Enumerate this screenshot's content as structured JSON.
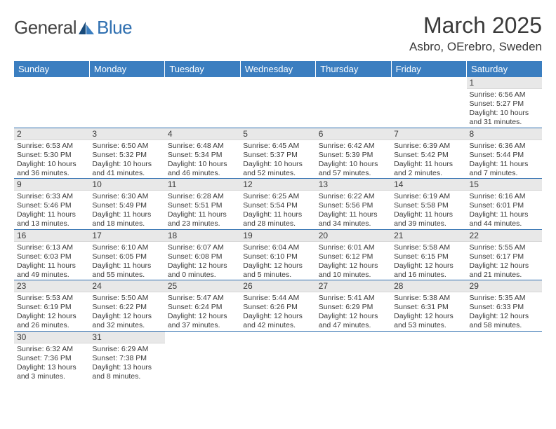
{
  "logo": {
    "part1": "General",
    "part2": "Blue"
  },
  "title": "March 2025",
  "location": "Asbro, OErebro, Sweden",
  "colors": {
    "header_bg": "#3b7ec0",
    "header_fg": "#ffffff",
    "daynum_bg": "#e8e8e8",
    "rule": "#2f6fb0",
    "text": "#3a3a3a",
    "logo_blue": "#2f6fb0"
  },
  "weekdays": [
    "Sunday",
    "Monday",
    "Tuesday",
    "Wednesday",
    "Thursday",
    "Friday",
    "Saturday"
  ],
  "grid": [
    [
      null,
      null,
      null,
      null,
      null,
      null,
      {
        "n": "1",
        "sr": "6:56 AM",
        "ss": "5:27 PM",
        "dl": "10 hours and 31 minutes."
      }
    ],
    [
      {
        "n": "2",
        "sr": "6:53 AM",
        "ss": "5:30 PM",
        "dl": "10 hours and 36 minutes."
      },
      {
        "n": "3",
        "sr": "6:50 AM",
        "ss": "5:32 PM",
        "dl": "10 hours and 41 minutes."
      },
      {
        "n": "4",
        "sr": "6:48 AM",
        "ss": "5:34 PM",
        "dl": "10 hours and 46 minutes."
      },
      {
        "n": "5",
        "sr": "6:45 AM",
        "ss": "5:37 PM",
        "dl": "10 hours and 52 minutes."
      },
      {
        "n": "6",
        "sr": "6:42 AM",
        "ss": "5:39 PM",
        "dl": "10 hours and 57 minutes."
      },
      {
        "n": "7",
        "sr": "6:39 AM",
        "ss": "5:42 PM",
        "dl": "11 hours and 2 minutes."
      },
      {
        "n": "8",
        "sr": "6:36 AM",
        "ss": "5:44 PM",
        "dl": "11 hours and 7 minutes."
      }
    ],
    [
      {
        "n": "9",
        "sr": "6:33 AM",
        "ss": "5:46 PM",
        "dl": "11 hours and 13 minutes."
      },
      {
        "n": "10",
        "sr": "6:30 AM",
        "ss": "5:49 PM",
        "dl": "11 hours and 18 minutes."
      },
      {
        "n": "11",
        "sr": "6:28 AM",
        "ss": "5:51 PM",
        "dl": "11 hours and 23 minutes."
      },
      {
        "n": "12",
        "sr": "6:25 AM",
        "ss": "5:54 PM",
        "dl": "11 hours and 28 minutes."
      },
      {
        "n": "13",
        "sr": "6:22 AM",
        "ss": "5:56 PM",
        "dl": "11 hours and 34 minutes."
      },
      {
        "n": "14",
        "sr": "6:19 AM",
        "ss": "5:58 PM",
        "dl": "11 hours and 39 minutes."
      },
      {
        "n": "15",
        "sr": "6:16 AM",
        "ss": "6:01 PM",
        "dl": "11 hours and 44 minutes."
      }
    ],
    [
      {
        "n": "16",
        "sr": "6:13 AM",
        "ss": "6:03 PM",
        "dl": "11 hours and 49 minutes."
      },
      {
        "n": "17",
        "sr": "6:10 AM",
        "ss": "6:05 PM",
        "dl": "11 hours and 55 minutes."
      },
      {
        "n": "18",
        "sr": "6:07 AM",
        "ss": "6:08 PM",
        "dl": "12 hours and 0 minutes."
      },
      {
        "n": "19",
        "sr": "6:04 AM",
        "ss": "6:10 PM",
        "dl": "12 hours and 5 minutes."
      },
      {
        "n": "20",
        "sr": "6:01 AM",
        "ss": "6:12 PM",
        "dl": "12 hours and 10 minutes."
      },
      {
        "n": "21",
        "sr": "5:58 AM",
        "ss": "6:15 PM",
        "dl": "12 hours and 16 minutes."
      },
      {
        "n": "22",
        "sr": "5:55 AM",
        "ss": "6:17 PM",
        "dl": "12 hours and 21 minutes."
      }
    ],
    [
      {
        "n": "23",
        "sr": "5:53 AM",
        "ss": "6:19 PM",
        "dl": "12 hours and 26 minutes."
      },
      {
        "n": "24",
        "sr": "5:50 AM",
        "ss": "6:22 PM",
        "dl": "12 hours and 32 minutes."
      },
      {
        "n": "25",
        "sr": "5:47 AM",
        "ss": "6:24 PM",
        "dl": "12 hours and 37 minutes."
      },
      {
        "n": "26",
        "sr": "5:44 AM",
        "ss": "6:26 PM",
        "dl": "12 hours and 42 minutes."
      },
      {
        "n": "27",
        "sr": "5:41 AM",
        "ss": "6:29 PM",
        "dl": "12 hours and 47 minutes."
      },
      {
        "n": "28",
        "sr": "5:38 AM",
        "ss": "6:31 PM",
        "dl": "12 hours and 53 minutes."
      },
      {
        "n": "29",
        "sr": "5:35 AM",
        "ss": "6:33 PM",
        "dl": "12 hours and 58 minutes."
      }
    ],
    [
      {
        "n": "30",
        "sr": "6:32 AM",
        "ss": "7:36 PM",
        "dl": "13 hours and 3 minutes."
      },
      {
        "n": "31",
        "sr": "6:29 AM",
        "ss": "7:38 PM",
        "dl": "13 hours and 8 minutes."
      },
      null,
      null,
      null,
      null,
      null
    ]
  ],
  "labels": {
    "sunrise": "Sunrise:",
    "sunset": "Sunset:",
    "daylight": "Daylight:"
  }
}
